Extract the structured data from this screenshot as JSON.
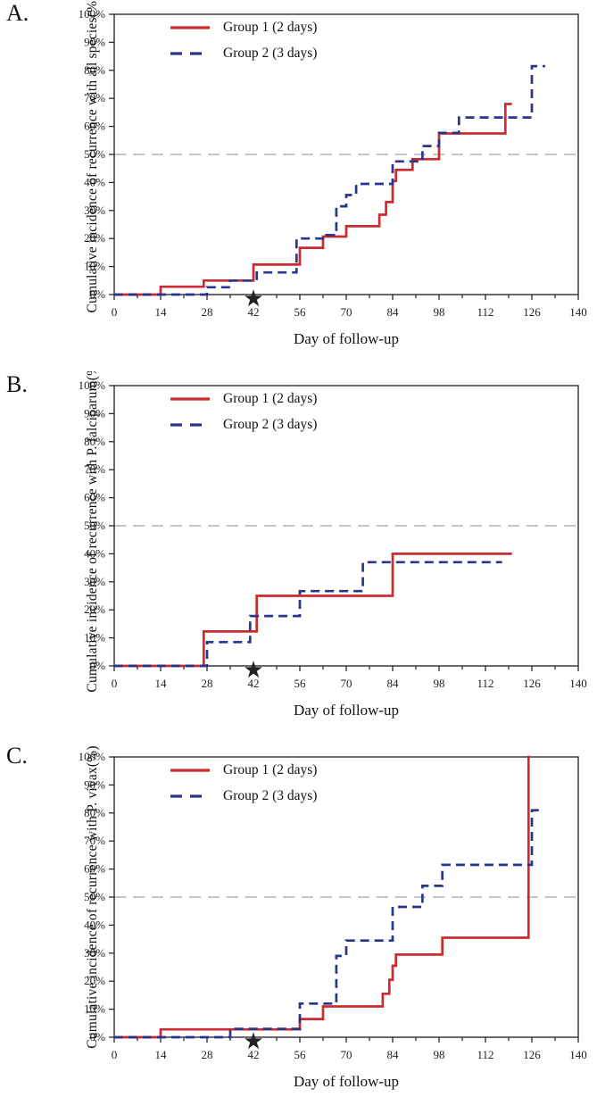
{
  "colors": {
    "group1": "#cb2b2e",
    "group2": "#2b348c",
    "refline": "#b3b3b3",
    "axis": "#2a2a2a",
    "star": "#111111"
  },
  "chart_data": {
    "type": "line",
    "subtype": "step-cumulative-incidence",
    "xlabel": "Day of follow-up",
    "xlim": [
      0,
      140
    ],
    "ylim": [
      0,
      100
    ],
    "x_ticks": [
      0,
      14,
      28,
      42,
      56,
      70,
      84,
      98,
      112,
      126,
      140
    ],
    "x_minor_step": 7,
    "y_ticks": [
      "0%",
      "10%",
      "20%",
      "30%",
      "40%",
      "50%",
      "60%",
      "70%",
      "80%",
      "90%",
      "100%"
    ],
    "refline_y": 50,
    "star": {
      "x": 42,
      "glyph": "★"
    },
    "legend": [
      {
        "label": "Group 1 (2 days)",
        "style": "solid",
        "color_key": "group1"
      },
      {
        "label": "Group 2 (3 days)",
        "style": "dashed",
        "color_key": "group2"
      }
    ],
    "panels": [
      {
        "letter": "A.",
        "ylabel": "Cumulative incidence of recurrence with all species(%)",
        "series": [
          {
            "name": "Group 1 (2 days)",
            "style": "solid",
            "color_key": "group1",
            "steps": [
              [
                0,
                0
              ],
              [
                14,
                2.8
              ],
              [
                27,
                5
              ],
              [
                42,
                10.7
              ],
              [
                56,
                16.7
              ],
              [
                63,
                20.7
              ],
              [
                70,
                24.4
              ],
              [
                80,
                28.5
              ],
              [
                82,
                33
              ],
              [
                84,
                40.5
              ],
              [
                85,
                44.5
              ],
              [
                90,
                48.3
              ],
              [
                98,
                57.5
              ],
              [
                118,
                68
              ]
            ],
            "end": 120
          },
          {
            "name": "Group 2 (3 days)",
            "style": "dashed",
            "color_key": "group2",
            "steps": [
              [
                0,
                0
              ],
              [
                28,
                2.6
              ],
              [
                35,
                5
              ],
              [
                43,
                7.9
              ],
              [
                55,
                20
              ],
              [
                64,
                21.2
              ],
              [
                67,
                31.5
              ],
              [
                70,
                35.5
              ],
              [
                73,
                39.5
              ],
              [
                84,
                47.5
              ],
              [
                93,
                53
              ],
              [
                98,
                57.7
              ],
              [
                104,
                63.2
              ],
              [
                126,
                81.5
              ]
            ],
            "end": 130
          }
        ]
      },
      {
        "letter": "B.",
        "ylabel": "Cumulative incidence of recurrence with P. falciparum(%)",
        "series": [
          {
            "name": "Group 1 (2 days)",
            "style": "solid",
            "color_key": "group1",
            "steps": [
              [
                0,
                0
              ],
              [
                27,
                12.3
              ],
              [
                43,
                25
              ],
              [
                84,
                40
              ]
            ],
            "end": 120
          },
          {
            "name": "Group 2 (3 days)",
            "style": "dashed",
            "color_key": "group2",
            "steps": [
              [
                0,
                0
              ],
              [
                28,
                8.5
              ],
              [
                41,
                17.8
              ],
              [
                56,
                26.7
              ],
              [
                75,
                37
              ]
            ],
            "end": 117
          }
        ]
      },
      {
        "letter": "C.",
        "ylabel": "Cumulative incidence of recurrence with P. vivax(%)",
        "series": [
          {
            "name": "Group 1 (2 days)",
            "style": "solid",
            "color_key": "group1",
            "steps": [
              [
                0,
                0
              ],
              [
                14,
                2.8
              ],
              [
                56,
                6.5
              ],
              [
                63,
                11
              ],
              [
                81,
                15.5
              ],
              [
                83,
                20.5
              ],
              [
                84,
                25.5
              ],
              [
                85,
                29.5
              ],
              [
                99,
                35.5
              ],
              [
                125,
                100
              ]
            ],
            "end": 125.5
          },
          {
            "name": "Group 2 (3 days)",
            "style": "dashed",
            "color_key": "group2",
            "steps": [
              [
                0,
                0
              ],
              [
                35,
                3
              ],
              [
                56,
                12
              ],
              [
                67,
                29
              ],
              [
                70,
                34.5
              ],
              [
                84,
                46.5
              ],
              [
                93,
                54
              ],
              [
                99,
                61.5
              ],
              [
                126,
                81
              ]
            ],
            "end": 129
          }
        ]
      }
    ]
  }
}
